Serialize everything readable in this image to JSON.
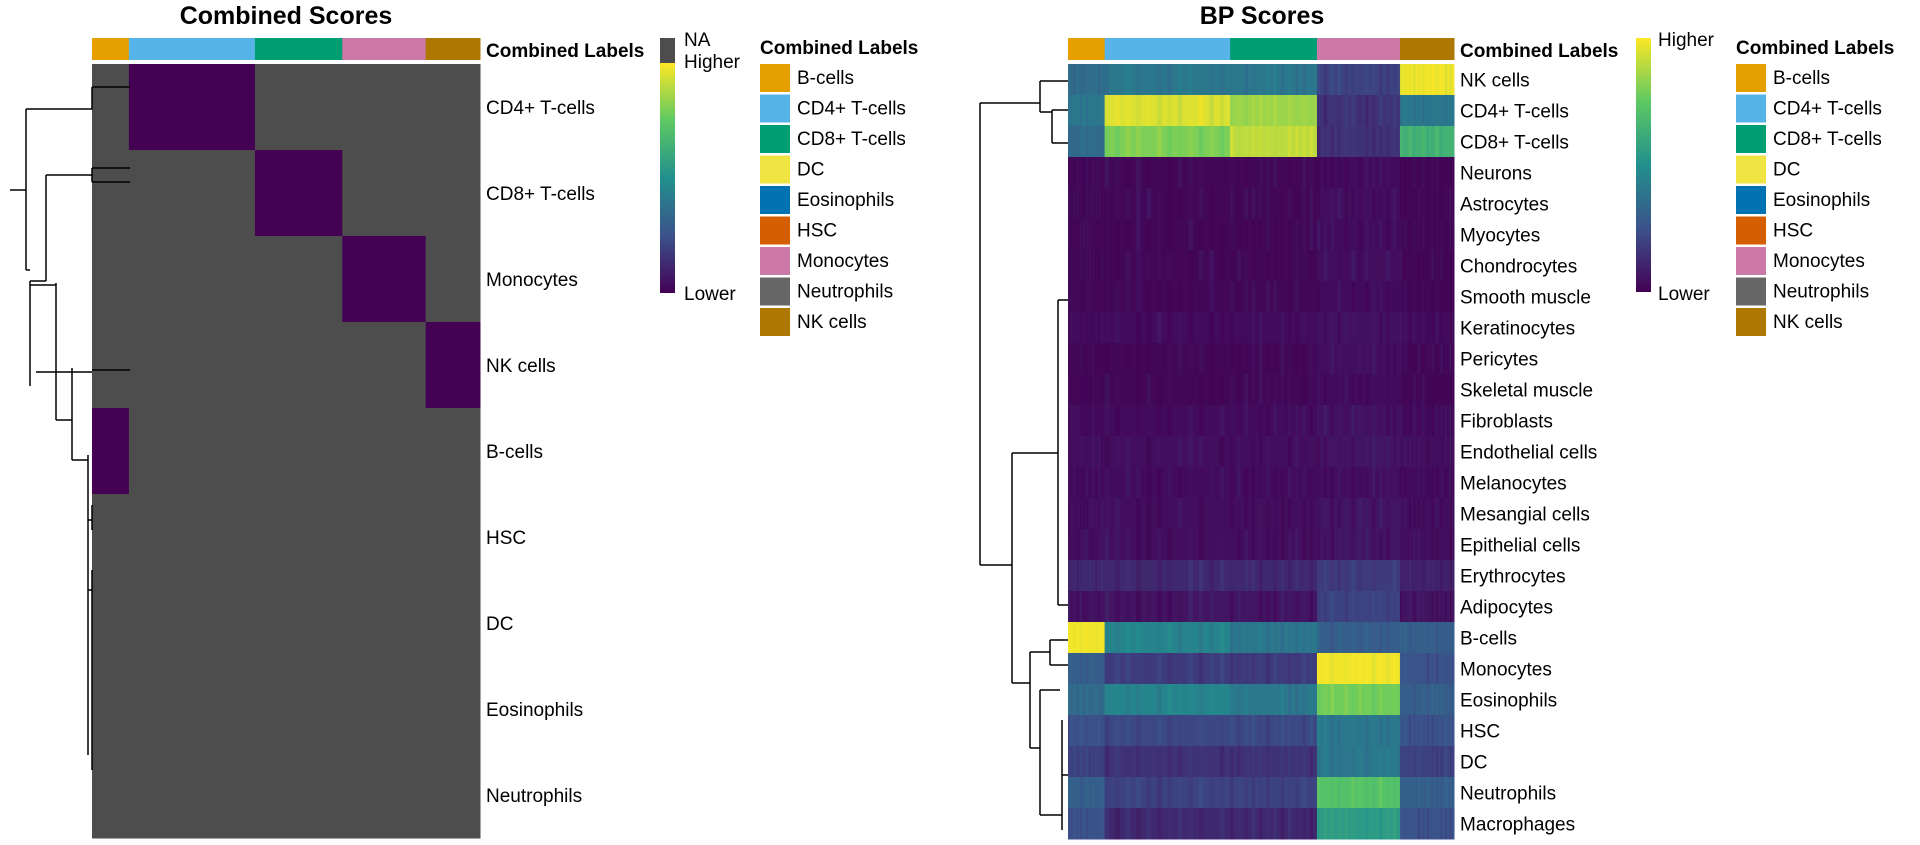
{
  "chart_data": [
    {
      "type": "heatmap",
      "title": "Combined Scores",
      "annotation_title": "Combined Labels",
      "column_groups": [
        {
          "label": "B-cells",
          "fraction": 0.095
        },
        {
          "label": "CD4+ T-cells",
          "fraction": 0.325
        },
        {
          "label": "CD8+ T-cells",
          "fraction": 0.225
        },
        {
          "label": "Monocytes",
          "fraction": 0.215
        },
        {
          "label": "NK cells",
          "fraction": 0.14
        }
      ],
      "rows": [
        "CD4+ T-cells",
        "CD8+ T-cells",
        "Monocytes",
        "NK cells",
        "B-cells",
        "HSC",
        "DC",
        "Eosinophils",
        "Neutrophils"
      ],
      "values_by_group": [
        [
          "NA",
          "Lower",
          "NA",
          "NA",
          "NA"
        ],
        [
          "NA",
          "NA",
          "Lower",
          "NA",
          "NA"
        ],
        [
          "NA",
          "NA",
          "NA",
          "Lower",
          "NA"
        ],
        [
          "NA",
          "NA",
          "NA",
          "NA",
          "Lower"
        ],
        [
          "Lower",
          "NA",
          "NA",
          "NA",
          "NA"
        ],
        [
          "NA",
          "NA",
          "NA",
          "NA",
          "NA"
        ],
        [
          "NA",
          "NA",
          "NA",
          "NA",
          "NA"
        ],
        [
          "NA",
          "NA",
          "NA",
          "NA",
          "NA"
        ],
        [
          "NA",
          "NA",
          "NA",
          "NA",
          "NA"
        ]
      ],
      "color_legend": {
        "na": "NA",
        "high": "Higher",
        "low": "Lower",
        "na_color": "#4d4d4d"
      }
    },
    {
      "type": "heatmap",
      "title": "BP Scores",
      "annotation_title": "Combined Labels",
      "column_groups": [
        {
          "label": "B-cells",
          "fraction": 0.095
        },
        {
          "label": "CD4+ T-cells",
          "fraction": 0.325
        },
        {
          "label": "CD8+ T-cells",
          "fraction": 0.225
        },
        {
          "label": "Monocytes",
          "fraction": 0.215
        },
        {
          "label": "NK cells",
          "fraction": 0.14
        }
      ],
      "rows": [
        "NK cells",
        "CD4+ T-cells",
        "CD8+ T-cells",
        "Neurons",
        "Astrocytes",
        "Myocytes",
        "Chondrocytes",
        "Smooth muscle",
        "Keratinocytes",
        "Pericytes",
        "Skeletal muscle",
        "Fibroblasts",
        "Endothelial cells",
        "Melanocytes",
        "Mesangial cells",
        "Epithelial cells",
        "Erythrocytes",
        "Adipocytes",
        "B-cells",
        "Monocytes",
        "Eosinophils",
        "HSC",
        "DC",
        "Neutrophils",
        "Macrophages"
      ],
      "values_by_group": [
        [
          0.35,
          0.4,
          0.4,
          0.2,
          0.98
        ],
        [
          0.4,
          0.95,
          0.85,
          0.15,
          0.4
        ],
        [
          0.35,
          0.8,
          0.9,
          0.15,
          0.65
        ],
        [
          0.02,
          0.02,
          0.02,
          0.03,
          0.02
        ],
        [
          0.02,
          0.02,
          0.02,
          0.04,
          0.02
        ],
        [
          0.02,
          0.02,
          0.02,
          0.03,
          0.02
        ],
        [
          0.02,
          0.02,
          0.02,
          0.04,
          0.02
        ],
        [
          0.02,
          0.02,
          0.02,
          0.03,
          0.02
        ],
        [
          0.03,
          0.03,
          0.03,
          0.05,
          0.03
        ],
        [
          0.02,
          0.02,
          0.02,
          0.04,
          0.02
        ],
        [
          0.02,
          0.02,
          0.02,
          0.03,
          0.02
        ],
        [
          0.03,
          0.03,
          0.03,
          0.05,
          0.03
        ],
        [
          0.04,
          0.04,
          0.04,
          0.06,
          0.04
        ],
        [
          0.03,
          0.03,
          0.03,
          0.04,
          0.03
        ],
        [
          0.04,
          0.04,
          0.04,
          0.06,
          0.04
        ],
        [
          0.04,
          0.04,
          0.04,
          0.06,
          0.04
        ],
        [
          0.12,
          0.12,
          0.12,
          0.18,
          0.1
        ],
        [
          0.05,
          0.06,
          0.06,
          0.2,
          0.06
        ],
        [
          0.98,
          0.45,
          0.4,
          0.3,
          0.3
        ],
        [
          0.3,
          0.18,
          0.18,
          0.98,
          0.25
        ],
        [
          0.35,
          0.45,
          0.4,
          0.78,
          0.3
        ],
        [
          0.25,
          0.22,
          0.22,
          0.4,
          0.25
        ],
        [
          0.2,
          0.15,
          0.15,
          0.4,
          0.2
        ],
        [
          0.3,
          0.2,
          0.2,
          0.72,
          0.3
        ],
        [
          0.25,
          0.12,
          0.12,
          0.55,
          0.25
        ]
      ],
      "color_legend": {
        "high": "Higher",
        "low": "Lower"
      }
    }
  ],
  "legend": {
    "title": "Combined Labels",
    "items": [
      {
        "label": "B-cells",
        "color": "#E69F00"
      },
      {
        "label": "CD4+ T-cells",
        "color": "#56B4E9"
      },
      {
        "label": "CD8+ T-cells",
        "color": "#009E73"
      },
      {
        "label": "DC",
        "color": "#F0E442"
      },
      {
        "label": "Eosinophils",
        "color": "#0072B2"
      },
      {
        "label": "HSC",
        "color": "#D55E00"
      },
      {
        "label": "Monocytes",
        "color": "#CC79A7"
      },
      {
        "label": "Neutrophils",
        "color": "#666666"
      },
      {
        "label": "NK cells",
        "color": "#AD7700"
      }
    ]
  }
}
